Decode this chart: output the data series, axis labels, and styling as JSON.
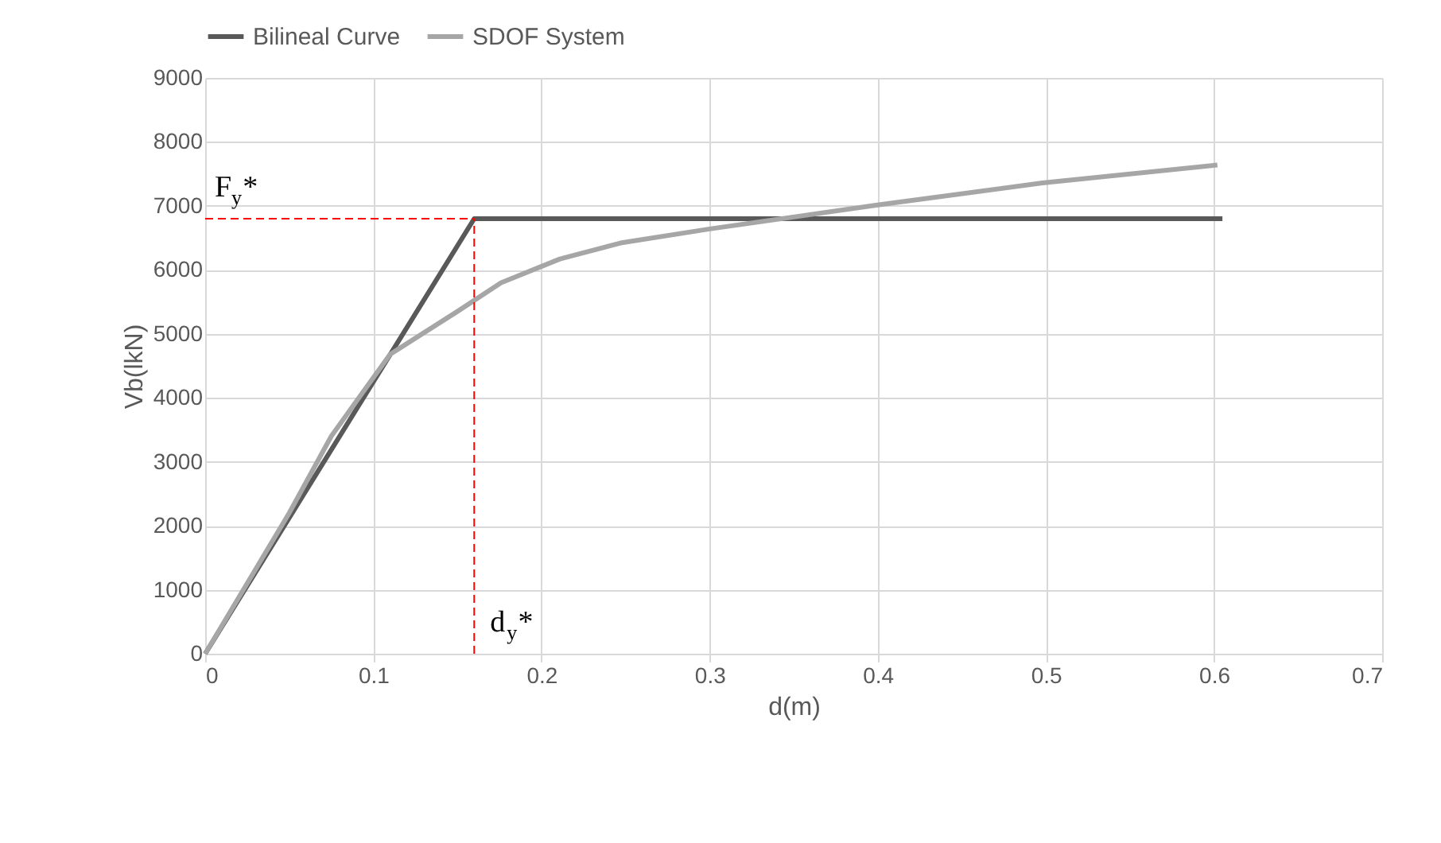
{
  "chart_data": {
    "type": "line",
    "xlabel": "d(m)",
    "ylabel": "Vb(lkN)",
    "xlim": [
      0,
      0.7
    ],
    "xticks": [
      0,
      0.1,
      0.2,
      0.3,
      0.4,
      0.5,
      0.6,
      0.7
    ],
    "ylim": [
      0,
      9000
    ],
    "yticks": [
      0,
      1000,
      2000,
      3000,
      4000,
      5000,
      6000,
      7000,
      8000,
      9000
    ],
    "grid": true,
    "legend": "top",
    "marker": "none",
    "line_style": "solid",
    "series": [
      {
        "name": "Bilineal Curve",
        "color": "#595959",
        "x": [
          0,
          0.16,
          0.605
        ],
        "values": [
          0,
          6800,
          6800
        ]
      },
      {
        "name": "SDOF System",
        "color": "#a6a6a6",
        "x": [
          0,
          0.05,
          0.075,
          0.11,
          0.15,
          0.176,
          0.211,
          0.247,
          0.3,
          0.399,
          0.498,
          0.602
        ],
        "values": [
          0,
          2200,
          3400,
          4680,
          5350,
          5800,
          6170,
          6420,
          6640,
          7010,
          7360,
          7640
        ]
      }
    ],
    "ref_lines": [
      {
        "axis": "y",
        "value": 6800,
        "label": "F$_{y}$*",
        "color": "#ff0000",
        "line_style": "dashed"
      },
      {
        "axis": "x",
        "value": 0.16,
        "label": "d$_{y}$*",
        "color": "#ff0000",
        "line_style": "dashed"
      }
    ]
  }
}
